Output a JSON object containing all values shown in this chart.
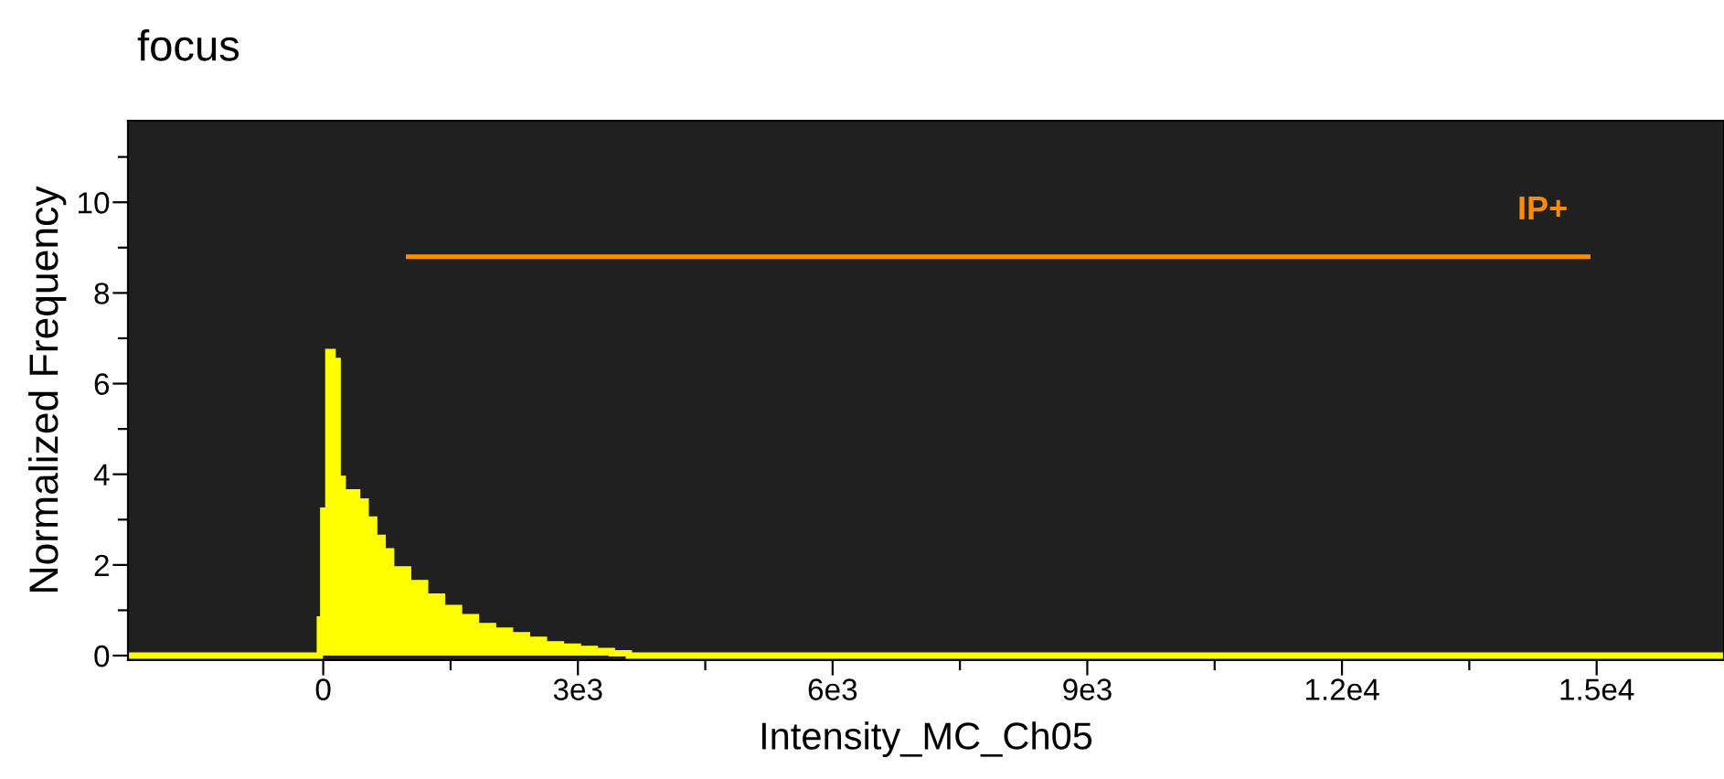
{
  "chart_data": {
    "type": "histogram",
    "title": "focus",
    "xlabel": "Intensity_MC_Ch05",
    "ylabel": "Normalized Frequency",
    "bins": [
      -2300,
      -40,
      0,
      60,
      110,
      170,
      230,
      400,
      500,
      600,
      700,
      800,
      1000,
      1200,
      1400,
      1600,
      1800,
      2000,
      2200,
      2400,
      2600,
      2800,
      3000,
      3200,
      3400,
      3600,
      16500
    ],
    "values": [
      0,
      0.8,
      3.2,
      6.7,
      6.5,
      3.9,
      3.6,
      3.4,
      3.0,
      2.6,
      2.3,
      1.9,
      1.6,
      1.3,
      1.05,
      0.85,
      0.65,
      0.55,
      0.45,
      0.35,
      0.25,
      0.2,
      0.15,
      0.1,
      0.05,
      0
    ],
    "color": "#ffff00",
    "xlim": [
      -2300,
      16500
    ],
    "ylim": [
      -0.1,
      11.8
    ],
    "xticks": [
      {
        "value": 0,
        "label": "0"
      },
      {
        "value": 1500,
        "label": null
      },
      {
        "value": 3000,
        "label": "3e3"
      },
      {
        "value": 4500,
        "label": null
      },
      {
        "value": 6000,
        "label": "6e3"
      },
      {
        "value": 7500,
        "label": null
      },
      {
        "value": 9000,
        "label": "9e3"
      },
      {
        "value": 10500,
        "label": null
      },
      {
        "value": 12000,
        "label": "1.2e4"
      },
      {
        "value": 13500,
        "label": null
      },
      {
        "value": 15000,
        "label": "1.5e4"
      }
    ],
    "yticks": [
      0,
      {
        "value": 1,
        "label": null
      },
      2,
      {
        "value": 3,
        "label": null
      },
      4,
      {
        "value": 5,
        "label": null
      },
      6,
      {
        "value": 7,
        "label": null
      },
      8,
      {
        "value": 9,
        "label": null
      },
      10,
      {
        "value": 11,
        "label": null
      }
    ],
    "series": [
      {
        "type": "line",
        "name": "IP+",
        "color": "#ff8c00",
        "x": [
          1000,
          14900
        ],
        "values": [
          8.8,
          8.8
        ]
      }
    ],
    "grid": false,
    "legend": false
  }
}
